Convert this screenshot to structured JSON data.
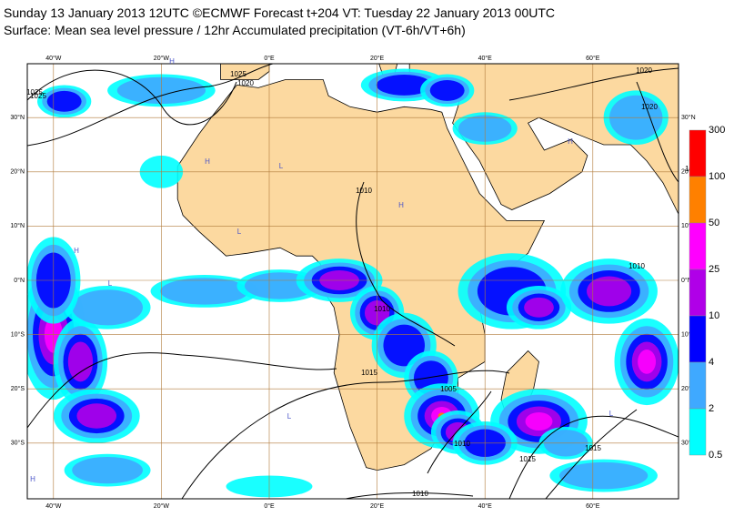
{
  "header": {
    "title": "Sunday 13 January 2013 12UTC ©ECMWF Forecast t+204 VT: Tuesday 22 January 2013 00UTC",
    "subtitle": "Surface: Mean sea level pressure / 12hr Accumulated precipitation (VT-6h/VT+6h)"
  },
  "map": {
    "longitude_labels": [
      "40°W",
      "20°W",
      "0°E",
      "20°E",
      "40°E",
      "60°E"
    ],
    "latitude_labels": [
      "30°N",
      "20°N",
      "10°N",
      "0°N",
      "10°S",
      "20°S",
      "30°S"
    ],
    "isobar_labels": [
      "1025",
      "1020",
      "1025",
      "1015",
      "1020",
      "1025",
      "1010",
      "1010",
      "1015",
      "1005",
      "1010",
      "1015",
      "1020",
      "1010",
      "1010",
      "1015"
    ],
    "pressure_centres": [
      "H",
      "H",
      "L",
      "L",
      "H",
      "L",
      "H",
      "L",
      "H",
      "L",
      "H"
    ]
  },
  "legend": {
    "labels": [
      "300",
      "100",
      "50",
      "25",
      "10",
      "4",
      "2",
      "0.5"
    ]
  }
}
